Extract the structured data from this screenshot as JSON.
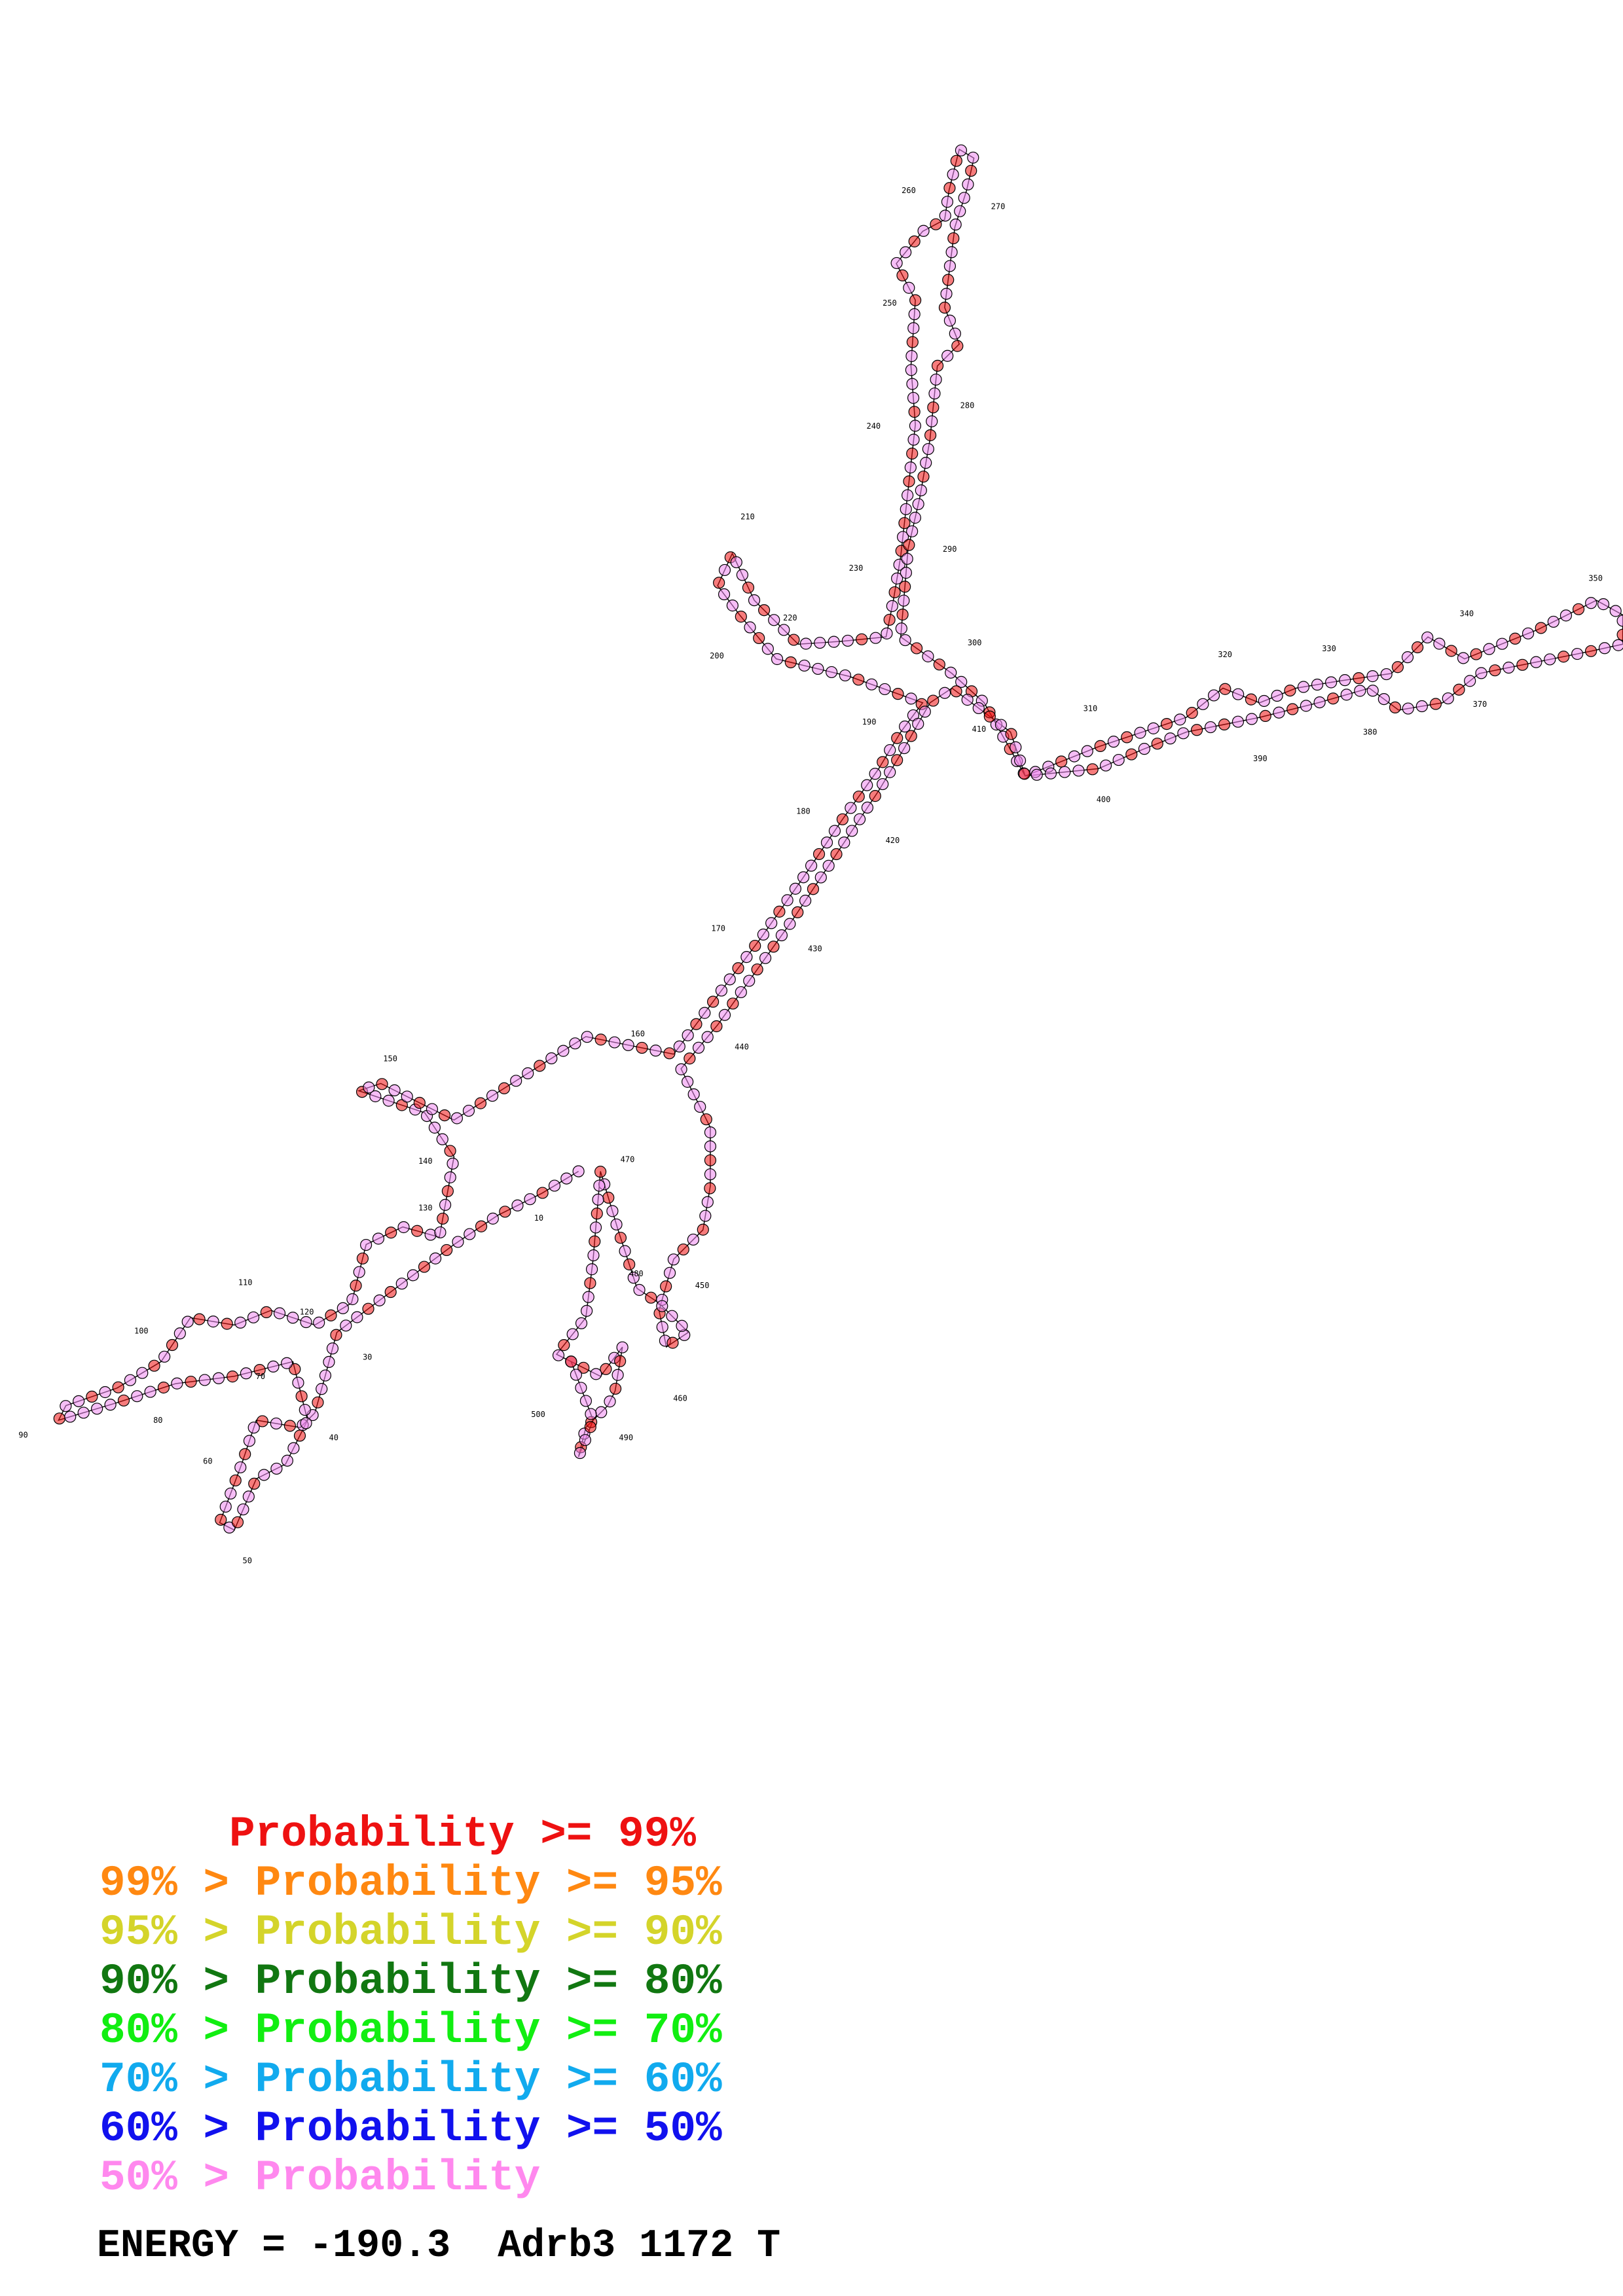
{
  "diagram": {
    "type": "RNA secondary structure",
    "position_labels": [
      "10",
      "30",
      "40",
      "50",
      "60",
      "70",
      "80",
      "90",
      "100",
      "110",
      "120",
      "130",
      "140",
      "150",
      "160",
      "170",
      "180",
      "190",
      "200",
      "210",
      "220",
      "230",
      "240",
      "250",
      "260",
      "270",
      "280",
      "290",
      "300",
      "310",
      "320",
      "330",
      "340",
      "350",
      "370",
      "380",
      "390",
      "400",
      "410",
      "420",
      "430",
      "440",
      "450",
      "460",
      "470",
      "480",
      "490",
      "500"
    ],
    "default_base_color": "#ee88ee"
  },
  "legend": [
    {
      "text": "     Probability >= 99%",
      "color": "#ee1111"
    },
    {
      "text": "99% > Probability >= 95%",
      "color": "#ff8811"
    },
    {
      "text": "95% > Probability >= 90%",
      "color": "#d4d42a"
    },
    {
      "text": "90% > Probability >= 80%",
      "color": "#117711"
    },
    {
      "text": "80% > Probability >= 70%",
      "color": "#11ee11"
    },
    {
      "text": "70% > Probability >= 60%",
      "color": "#11aaee"
    },
    {
      "text": "60% > Probability >= 50%",
      "color": "#1111ee"
    },
    {
      "text": "50% > Probability",
      "color": "#ff88ee"
    }
  ],
  "footer": {
    "text": "ENERGY = -190.3  Adrb3 1172 T"
  }
}
